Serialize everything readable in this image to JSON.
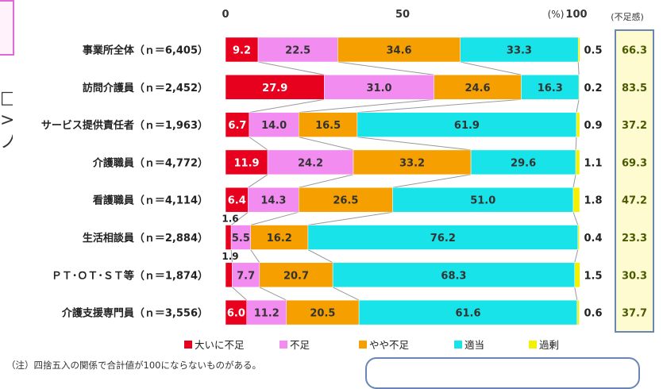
{
  "chart_data": {
    "type": "bar",
    "orientation": "horizontal",
    "stacked": true,
    "percent_unit_label": "(%)",
    "xticks": [
      "0",
      "50",
      "100"
    ],
    "xlim": [
      0,
      100
    ],
    "shortage_header": "(不足感)",
    "categories": [
      "事業所全体（ｎ＝6,405）",
      "訪問介護員（ｎ＝2,452）",
      "サービス提供責任者（ｎ＝1,963）",
      "介護職員（ｎ＝4,772）",
      "看護職員（ｎ＝4,114）",
      "生活相談員（ｎ＝2,884）",
      "ＰＴ･ＯＴ･ＳＴ等（ｎ＝1,874）",
      "介護支援専門員（ｎ＝3,556）"
    ],
    "series": [
      {
        "name": "大いに不足",
        "color": "#e8001f",
        "values": [
          9.2,
          27.9,
          6.7,
          11.9,
          6.4,
          1.6,
          1.9,
          6.0
        ],
        "labels": [
          "9.2",
          "27.9",
          "6.7",
          "11.9",
          "6.4",
          "1.6",
          "1.9",
          "6.0"
        ]
      },
      {
        "name": "不足",
        "color": "#f28cf0",
        "values": [
          22.5,
          31.0,
          14.0,
          24.2,
          14.3,
          5.5,
          7.7,
          11.2
        ],
        "labels": [
          "22.5",
          "31.0",
          "14.0",
          "24.2",
          "14.3",
          "5.5",
          "7.7",
          "11.2"
        ]
      },
      {
        "name": "やや不足",
        "color": "#f5a000",
        "values": [
          34.6,
          24.6,
          16.5,
          33.2,
          26.5,
          16.2,
          20.7,
          20.5
        ],
        "labels": [
          "34.6",
          "24.6",
          "16.5",
          "33.2",
          "26.5",
          "16.2",
          "20.7",
          "20.5"
        ]
      },
      {
        "name": "適当",
        "color": "#17e3e8",
        "values": [
          33.3,
          16.3,
          61.9,
          29.6,
          51.0,
          76.2,
          68.3,
          61.6
        ],
        "labels": [
          "33.3",
          "16.3",
          "61.9",
          "29.6",
          "51.0",
          "76.2",
          "68.3",
          "61.6"
        ]
      },
      {
        "name": "過剰",
        "color": "#f3f000",
        "values": [
          0.5,
          0.2,
          0.9,
          1.1,
          1.8,
          0.4,
          1.5,
          0.6
        ],
        "labels": [
          "0.5",
          "0.2",
          "0.9",
          "1.1",
          "1.8",
          "0.4",
          "1.5",
          "0.6"
        ]
      }
    ],
    "shortage_total": [
      "66.3",
      "83.5",
      "37.2",
      "69.3",
      "47.2",
      "23.3",
      "30.3",
      "37.7"
    ],
    "legend_position": "bottom",
    "grid": false,
    "note": "（注）四捨五入の関係で合計値が100にならないものがある。"
  },
  "colors": {
    "shortage_panel_bg": "#fffbd0",
    "shortage_panel_border": "#6a86b3",
    "shortage_value_text": "#4a5a00",
    "connector": "#999999"
  }
}
